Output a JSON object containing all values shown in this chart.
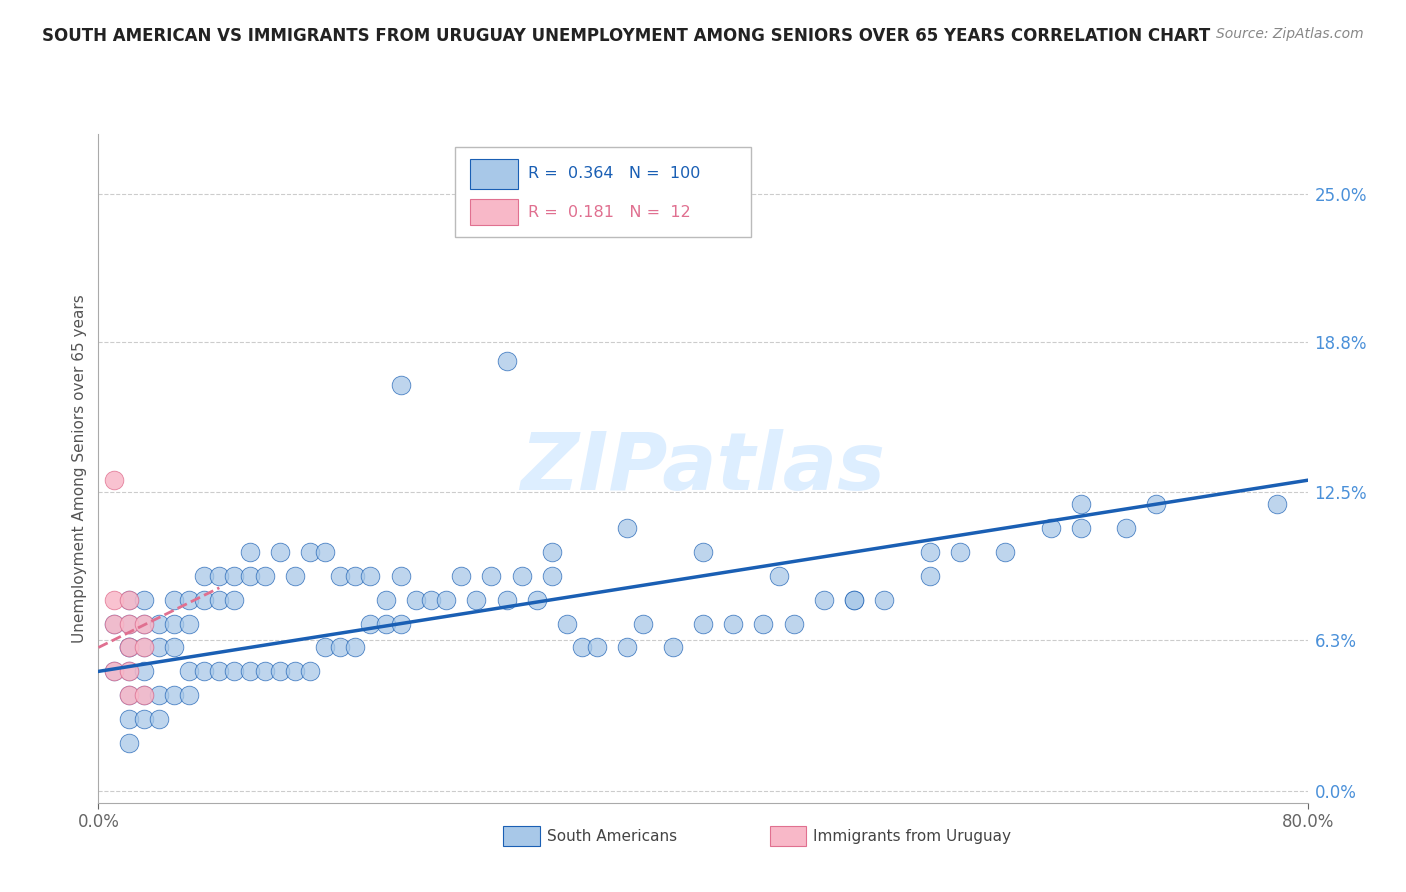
{
  "title": "SOUTH AMERICAN VS IMMIGRANTS FROM URUGUAY UNEMPLOYMENT AMONG SENIORS OVER 65 YEARS CORRELATION CHART",
  "source": "Source: ZipAtlas.com",
  "ylabel": "Unemployment Among Seniors over 65 years",
  "ytick_labels": [
    "25.0%",
    "18.8%",
    "12.5%",
    "6.3%",
    "0.0%"
  ],
  "ytick_values": [
    0.25,
    0.188,
    0.125,
    0.063,
    0.0
  ],
  "xlim": [
    0.0,
    0.8
  ],
  "ylim": [
    -0.005,
    0.275
  ],
  "r_blue": 0.364,
  "n_blue": 100,
  "r_pink": 0.181,
  "n_pink": 12,
  "blue_scatter_color": "#a8c8e8",
  "pink_scatter_color": "#f8b8c8",
  "trend_blue_color": "#1a5fb4",
  "trend_pink_color": "#e07090",
  "watermark_text": "ZIPatlas",
  "watermark_color": "#ddeeff",
  "legend_label_blue": "South Americans",
  "legend_label_pink": "Immigrants from Uruguay",
  "title_color": "#222222",
  "source_color": "#888888",
  "axis_label_color": "#555555",
  "tick_color": "#4a90d9",
  "grid_color": "#cccccc",
  "blue_points_x": [
    0.01,
    0.01,
    0.02,
    0.02,
    0.02,
    0.02,
    0.02,
    0.02,
    0.02,
    0.02,
    0.03,
    0.03,
    0.03,
    0.03,
    0.03,
    0.03,
    0.04,
    0.04,
    0.04,
    0.04,
    0.05,
    0.05,
    0.05,
    0.05,
    0.06,
    0.06,
    0.06,
    0.06,
    0.07,
    0.07,
    0.07,
    0.08,
    0.08,
    0.08,
    0.09,
    0.09,
    0.09,
    0.1,
    0.1,
    0.1,
    0.11,
    0.11,
    0.12,
    0.12,
    0.13,
    0.13,
    0.14,
    0.14,
    0.15,
    0.15,
    0.16,
    0.16,
    0.17,
    0.17,
    0.18,
    0.18,
    0.19,
    0.19,
    0.2,
    0.2,
    0.21,
    0.22,
    0.23,
    0.24,
    0.25,
    0.26,
    0.27,
    0.28,
    0.29,
    0.3,
    0.31,
    0.32,
    0.33,
    0.35,
    0.36,
    0.38,
    0.4,
    0.42,
    0.44,
    0.46,
    0.48,
    0.5,
    0.52,
    0.55,
    0.57,
    0.6,
    0.63,
    0.65,
    0.68,
    0.7,
    0.2,
    0.27,
    0.3,
    0.35,
    0.4,
    0.45,
    0.5,
    0.55,
    0.65,
    0.78
  ],
  "blue_points_y": [
    0.05,
    0.07,
    0.05,
    0.06,
    0.07,
    0.08,
    0.06,
    0.04,
    0.03,
    0.02,
    0.05,
    0.06,
    0.07,
    0.08,
    0.04,
    0.03,
    0.06,
    0.07,
    0.04,
    0.03,
    0.06,
    0.07,
    0.08,
    0.04,
    0.07,
    0.08,
    0.05,
    0.04,
    0.08,
    0.09,
    0.05,
    0.08,
    0.09,
    0.05,
    0.08,
    0.09,
    0.05,
    0.09,
    0.1,
    0.05,
    0.09,
    0.05,
    0.1,
    0.05,
    0.09,
    0.05,
    0.1,
    0.05,
    0.1,
    0.06,
    0.09,
    0.06,
    0.09,
    0.06,
    0.09,
    0.07,
    0.08,
    0.07,
    0.09,
    0.07,
    0.08,
    0.08,
    0.08,
    0.09,
    0.08,
    0.09,
    0.08,
    0.09,
    0.08,
    0.09,
    0.07,
    0.06,
    0.06,
    0.06,
    0.07,
    0.06,
    0.07,
    0.07,
    0.07,
    0.07,
    0.08,
    0.08,
    0.08,
    0.09,
    0.1,
    0.1,
    0.11,
    0.11,
    0.11,
    0.12,
    0.17,
    0.18,
    0.1,
    0.11,
    0.1,
    0.09,
    0.08,
    0.1,
    0.12,
    0.12
  ],
  "pink_points_x": [
    0.01,
    0.01,
    0.01,
    0.01,
    0.02,
    0.02,
    0.02,
    0.02,
    0.02,
    0.03,
    0.03,
    0.03
  ],
  "pink_points_y": [
    0.13,
    0.08,
    0.07,
    0.05,
    0.08,
    0.07,
    0.06,
    0.05,
    0.04,
    0.07,
    0.06,
    0.04
  ],
  "blue_trend_x": [
    0.0,
    0.8
  ],
  "blue_trend_y": [
    0.05,
    0.13
  ],
  "pink_trend_x": [
    0.0,
    0.08
  ],
  "pink_trend_y": [
    0.06,
    0.085
  ]
}
